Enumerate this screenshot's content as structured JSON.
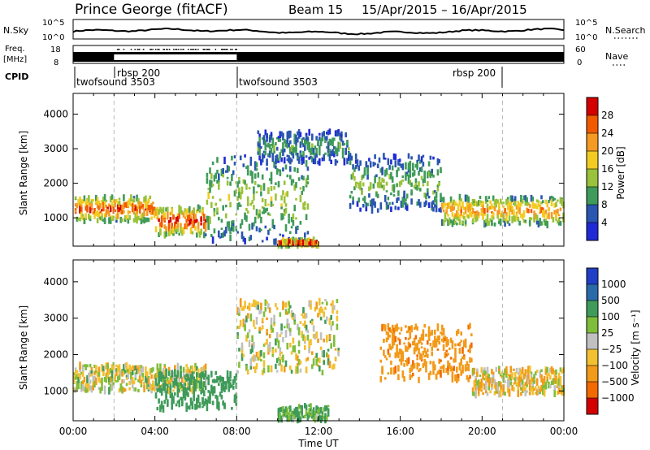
{
  "header": {
    "station": "Prince George (fitACF)",
    "beam": "Beam 15",
    "dates": "15/Apr/2015 – 16/Apr/2015"
  },
  "strips": {
    "nsky_label": "N.Sky",
    "nsky_ticks": [
      "10^5",
      "10^0"
    ],
    "nsearch_label": "N.Search",
    "nsearch_ticks": [
      "10^5",
      "10^0"
    ],
    "freq_label": "Freq.",
    "freq_unit": "[MHz]",
    "freq_ticks": [
      "18",
      "8"
    ],
    "nave_label": "Nave",
    "nave_ticks": [
      "60",
      "0"
    ],
    "cpid_label": "CPID",
    "cpid_segments": [
      {
        "label": "twofsound 3503",
        "start": "00:00"
      },
      {
        "label": "rbsp 200",
        "start": "02:00"
      },
      {
        "label": "twofsound 3503",
        "start": "08:00"
      },
      {
        "label": "rbsp 200",
        "start": "21:00"
      }
    ]
  },
  "power_panel": {
    "ylabel": "Slant Range [km]",
    "yticks": [
      "4000",
      "3000",
      "2000",
      "1000"
    ],
    "scale_label": "Power [dB]",
    "scale_ticks": [
      "28",
      "24",
      "20",
      "16",
      "12",
      "8",
      "4"
    ],
    "scale_colors": [
      "#d40000",
      "#f25a00",
      "#f59a22",
      "#f2cc22",
      "#9ac23a",
      "#3f9b5a",
      "#2a55b0",
      "#1f2ad6"
    ]
  },
  "velocity_panel": {
    "ylabel": "Slant Range [km]",
    "yticks": [
      "4000",
      "3000",
      "2000",
      "1000"
    ],
    "scale_label": "Velocity [m s⁻¹]",
    "scale_ticks": [
      "1000",
      "500",
      "100",
      "25",
      "−25",
      "−100",
      "−500",
      "−1000"
    ],
    "scale_colors": [
      "#1f3fc7",
      "#2a6aa8",
      "#3f9b5a",
      "#7fbe3a",
      "#c0c0c0",
      "#f2c030",
      "#f29a1a",
      "#f26a00",
      "#d40000"
    ]
  },
  "time_axis": {
    "label": "Time UT",
    "ticks": [
      "00:00",
      "04:00",
      "08:00",
      "12:00",
      "16:00",
      "20:00",
      "00:00"
    ]
  },
  "chart_data": [
    {
      "type": "heatmap",
      "panel": "power",
      "x_range_hours": [
        0,
        24
      ],
      "ylim_km": [
        180,
        4600
      ],
      "xlabel": "Time UT",
      "ylabel": "Slant Range [km]",
      "colorbar": {
        "label": "Power [dB]",
        "range": [
          0,
          30
        ]
      },
      "echo_bands": [
        {
          "t0": 0.0,
          "t1": 4.0,
          "range_km": [
            900,
            1600
          ],
          "peak_db": 26
        },
        {
          "t0": 4.0,
          "t1": 6.5,
          "range_km": [
            500,
            1300
          ],
          "peak_db": 28
        },
        {
          "t0": 6.5,
          "t1": 11.5,
          "range_km": [
            300,
            2800
          ],
          "peak_db": 14
        },
        {
          "t0": 9.0,
          "t1": 13.5,
          "range_km": [
            2600,
            3500
          ],
          "peak_db": 10
        },
        {
          "t0": 10.0,
          "t1": 12.0,
          "range_km": [
            200,
            350
          ],
          "peak_db": 30
        },
        {
          "t0": 13.5,
          "t1": 18.0,
          "range_km": [
            1200,
            2800
          ],
          "peak_db": 12
        },
        {
          "t0": 18.0,
          "t1": 24.0,
          "range_km": [
            800,
            1600
          ],
          "peak_db": 22
        }
      ]
    },
    {
      "type": "heatmap",
      "panel": "velocity",
      "x_range_hours": [
        0,
        24
      ],
      "ylim_km": [
        180,
        4600
      ],
      "xlabel": "Time UT",
      "ylabel": "Slant Range [km]",
      "colorbar": {
        "label": "Velocity [m s⁻¹]",
        "range": [
          -1000,
          1000
        ]
      },
      "echo_bands": [
        {
          "t0": 0.0,
          "t1": 6.5,
          "range_km": [
            1000,
            1700
          ],
          "velocity": 0
        },
        {
          "t0": 4.0,
          "t1": 8.0,
          "range_km": [
            500,
            1500
          ],
          "velocity": 300
        },
        {
          "t0": 8.0,
          "t1": 13.0,
          "range_km": [
            1500,
            3500
          ],
          "velocity": 0
        },
        {
          "t0": 10.0,
          "t1": 12.5,
          "range_km": [
            200,
            600
          ],
          "velocity": 150
        },
        {
          "t0": 15.0,
          "t1": 19.5,
          "range_km": [
            1300,
            2800
          ],
          "velocity": -400
        },
        {
          "t0": 19.5,
          "t1": 24.0,
          "range_km": [
            900,
            1600
          ],
          "velocity": -50
        }
      ]
    }
  ]
}
